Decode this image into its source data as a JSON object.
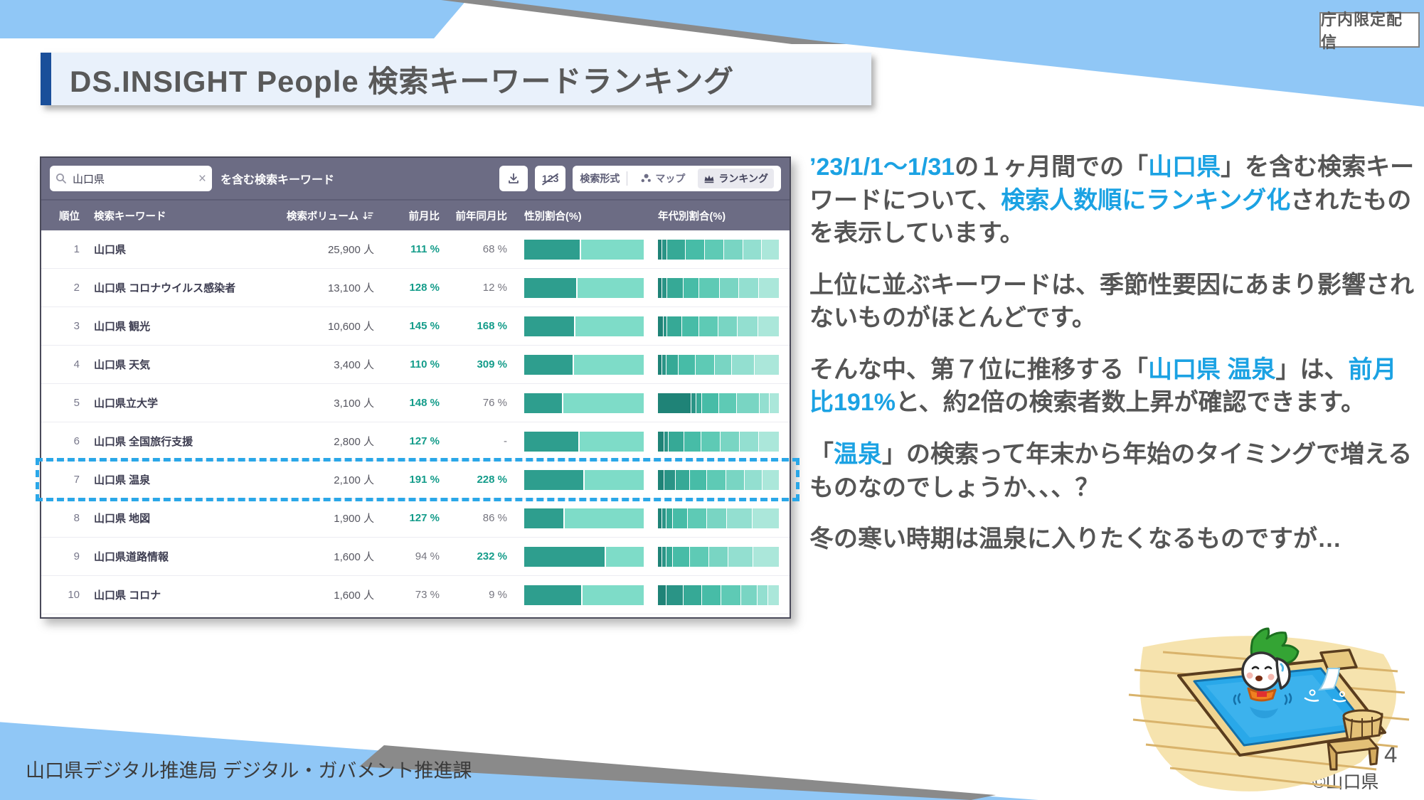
{
  "page": {
    "badge": "庁内限定配信",
    "title": "DS.INSIGHT People 検索キーワードランキング",
    "footer": "山口県デジタル推進局 デジタル・ガバメント推進課",
    "page_number": "4",
    "copyright": "©山口県"
  },
  "colors": {
    "accent_blue": "#1ba2e3",
    "body_text": "#555555",
    "teal": "#149c8a",
    "toolbar_bg": "#6c6c84",
    "decor_blue": "#90c7f6",
    "decor_gray": "#8a8a8a",
    "highlight_dash": "#2aa7e8",
    "title_bar": "#1a4f9a"
  },
  "toolbar": {
    "search_value": "山口県",
    "search_suffix": "を含む検索キーワード",
    "numbers_toggle": "123",
    "format_label": "検索形式",
    "map_label": "マップ",
    "ranking_label": "ランキング"
  },
  "table": {
    "headers": [
      "順位",
      "検索キーワード",
      "検索ボリューム",
      "前月比",
      "前年同月比",
      "性別割合(%)",
      "年代別割合(%)"
    ],
    "gender_colors": {
      "male": "#2e9e8e",
      "female": "#7edcc8"
    },
    "age_palette": [
      "#1f8377",
      "#2a9486",
      "#36a996",
      "#47bca7",
      "#5ecab5",
      "#79d5c3",
      "#93dfd0",
      "#abe7da"
    ],
    "rows": [
      {
        "rank": "1",
        "keyword": "山口県",
        "volume": "25,900 人",
        "mom": "111 %",
        "mom_up": true,
        "yoy": "68 %",
        "yoy_up": false,
        "male_pct": 47,
        "age_segments": [
          3,
          4,
          15,
          16,
          16,
          16,
          15,
          15
        ],
        "highlighted": false
      },
      {
        "rank": "2",
        "keyword": "山口県 コロナウイルス感染者",
        "volume": "13,100 人",
        "mom": "128 %",
        "mom_up": true,
        "yoy": "12 %",
        "yoy_up": false,
        "male_pct": 44,
        "age_segments": [
          3,
          4,
          13,
          13,
          17,
          16,
          17,
          17
        ],
        "highlighted": false
      },
      {
        "rank": "3",
        "keyword": "山口県 観光",
        "volume": "10,600 人",
        "mom": "145 %",
        "mom_up": true,
        "yoy": "168 %",
        "yoy_up": true,
        "male_pct": 42,
        "age_segments": [
          4,
          3,
          12,
          14,
          16,
          16,
          17,
          18
        ],
        "highlighted": false
      },
      {
        "rank": "4",
        "keyword": "山口県 天気",
        "volume": "3,400 人",
        "mom": "110 %",
        "mom_up": true,
        "yoy": "309 %",
        "yoy_up": true,
        "male_pct": 41,
        "age_segments": [
          3,
          3,
          10,
          14,
          16,
          14,
          19,
          21
        ],
        "highlighted": false
      },
      {
        "rank": "5",
        "keyword": "山口県立大学",
        "volume": "3,100 人",
        "mom": "148 %",
        "mom_up": true,
        "yoy": "76 %",
        "yoy_up": false,
        "male_pct": 32,
        "age_segments": [
          28,
          4,
          4,
          14,
          15,
          19,
          8,
          8
        ],
        "highlighted": false
      },
      {
        "rank": "6",
        "keyword": "山口県 全国旅行支援",
        "volume": "2,800 人",
        "mom": "127 %",
        "mom_up": true,
        "yoy": "-",
        "yoy_up": false,
        "male_pct": 46,
        "age_segments": [
          5,
          3,
          13,
          14,
          16,
          16,
          16,
          17
        ],
        "highlighted": false
      },
      {
        "rank": "7",
        "keyword": "山口県 温泉",
        "volume": "2,100 人",
        "mom": "191 %",
        "mom_up": true,
        "yoy": "228 %",
        "yoy_up": true,
        "male_pct": 50,
        "age_segments": [
          5,
          9,
          12,
          14,
          16,
          15,
          15,
          14
        ],
        "highlighted": true
      },
      {
        "rank": "8",
        "keyword": "山口県 地図",
        "volume": "1,900 人",
        "mom": "127 %",
        "mom_up": true,
        "yoy": "86 %",
        "yoy_up": false,
        "male_pct": 33,
        "age_segments": [
          3,
          3,
          5,
          12,
          16,
          17,
          21,
          23
        ],
        "highlighted": false
      },
      {
        "rank": "9",
        "keyword": "山口県道路情報",
        "volume": "1,600 人",
        "mom": "94 %",
        "mom_up": false,
        "yoy": "232 %",
        "yoy_up": true,
        "male_pct": 68,
        "age_segments": [
          3,
          3,
          5,
          14,
          16,
          16,
          21,
          22
        ],
        "highlighted": false
      },
      {
        "rank": "10",
        "keyword": "山口県 コロナ",
        "volume": "1,600 人",
        "mom": "73 %",
        "mom_up": false,
        "yoy": "9 %",
        "yoy_up": false,
        "male_pct": 48,
        "age_segments": [
          7,
          14,
          15,
          16,
          17,
          13,
          9,
          9
        ],
        "highlighted": false
      }
    ]
  },
  "side_text": {
    "paragraphs": [
      [
        {
          "t": "’23/1/1～1/31",
          "b": 1
        },
        {
          "t": "の１ヶ月間での「",
          "b": 0
        },
        {
          "t": "山口県",
          "b": 1
        },
        {
          "t": "」を含む検索キーワードについて、",
          "b": 0
        },
        {
          "t": "検索人数順にランキング化",
          "b": 1
        },
        {
          "t": "されたものを表示しています。",
          "b": 0
        }
      ],
      [
        {
          "t": "上位に並ぶキーワードは、季節性要因にあまり影響されないものがほとんどです。",
          "b": 0
        }
      ],
      [
        {
          "t": "そんな中、第７位に推移する「",
          "b": 0
        },
        {
          "t": "山口県 温泉",
          "b": 1
        },
        {
          "t": "」は、",
          "b": 0
        },
        {
          "t": "前月比191%",
          "b": 1
        },
        {
          "t": "と、約2倍の検索者数上昇が確認できます。",
          "b": 0
        }
      ],
      [
        {
          "t": "「",
          "b": 0
        },
        {
          "t": "温泉",
          "b": 1
        },
        {
          "t": "」の検索って年末から年始のタイミングで増えるものなのでしょうか、、、？",
          "b": 0
        }
      ],
      [
        {
          "t": "冬の寒い時期は温泉に入りたくなるものですが…",
          "b": 0
        }
      ]
    ]
  }
}
